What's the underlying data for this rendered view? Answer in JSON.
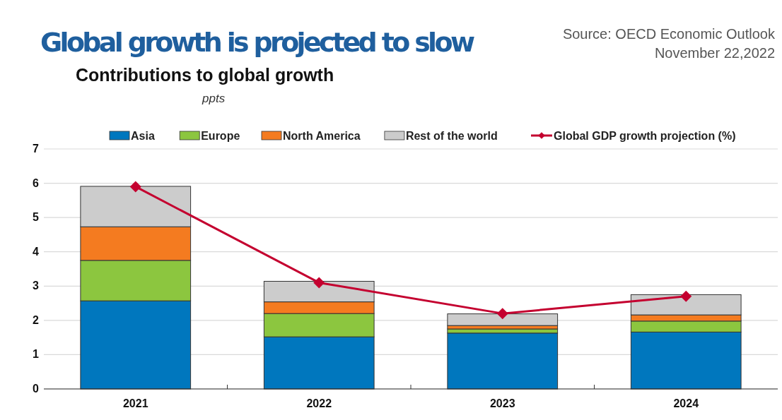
{
  "chart_data": {
    "type": "bar",
    "title": "Global growth is projected to slow",
    "subtitle": "Contributions to global growth",
    "ylabel": "ppts",
    "annotations": [
      "Source: OECD Economic Outlook",
      "November 22,2022"
    ],
    "categories": [
      "2021",
      "2022",
      "2023",
      "2024"
    ],
    "stacked": true,
    "ylim": [
      0,
      7
    ],
    "yticks": [
      0,
      1,
      2,
      3,
      4,
      5,
      6,
      7
    ],
    "grid": "y",
    "legend": "top",
    "series": [
      {
        "name": "Asia",
        "color": "#0077be",
        "values": [
          2.57,
          1.52,
          1.63,
          1.66
        ]
      },
      {
        "name": "Europe",
        "color": "#8cc63f",
        "values": [
          1.18,
          0.68,
          0.12,
          0.32
        ]
      },
      {
        "name": "North America",
        "color": "#f47b20",
        "values": [
          0.98,
          0.34,
          0.1,
          0.18
        ]
      },
      {
        "name": "Rest of the world",
        "color": "#cccccc",
        "values": [
          1.18,
          0.6,
          0.34,
          0.59
        ]
      },
      {
        "name": "Global GDP growth projection (%)",
        "type": "line",
        "color": "#c4002f",
        "marker": "diamond",
        "values": [
          5.9,
          3.1,
          2.2,
          2.7
        ]
      }
    ]
  }
}
